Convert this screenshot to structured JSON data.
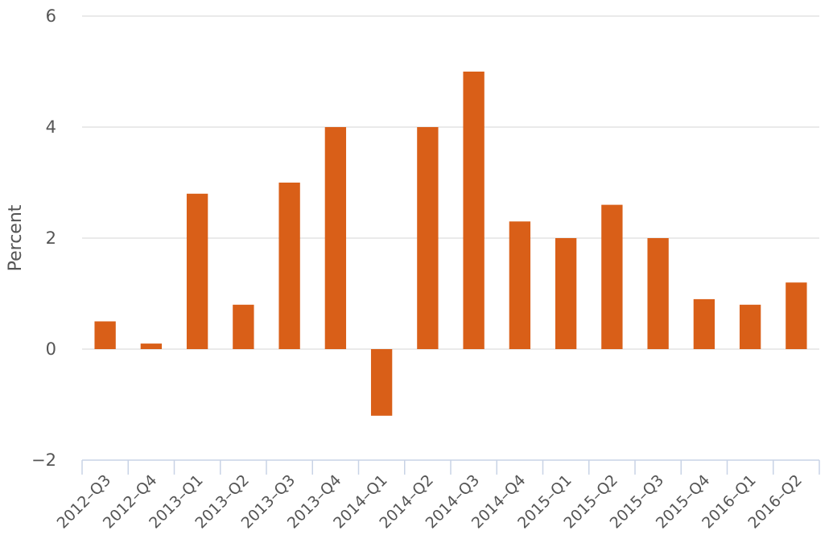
{
  "chart_data": {
    "type": "bar",
    "title": "",
    "xlabel": "",
    "ylabel": "Percent",
    "ylim": [
      -2,
      6
    ],
    "yticks": [
      -2,
      0,
      2,
      4,
      6
    ],
    "ytick_labels": [
      "−2",
      "0",
      "2",
      "4",
      "6"
    ],
    "grid": true,
    "legend": "none",
    "bar_color": "#d95f18",
    "categories": [
      "2012–Q3",
      "2012–Q4",
      "2013–Q1",
      "2013–Q2",
      "2013–Q3",
      "2013–Q4",
      "2014–Q1",
      "2014–Q2",
      "2014–Q3",
      "2014–Q4",
      "2015–Q1",
      "2015–Q2",
      "2015–Q3",
      "2015–Q4",
      "2016–Q1",
      "2016–Q2"
    ],
    "values": [
      0.5,
      0.1,
      2.8,
      0.8,
      3.0,
      4.0,
      -1.2,
      4.0,
      5.0,
      2.3,
      2.0,
      2.6,
      2.0,
      0.9,
      0.8,
      1.2
    ]
  }
}
